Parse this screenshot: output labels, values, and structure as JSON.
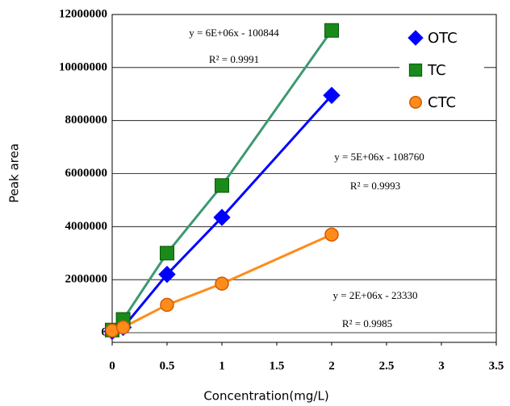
{
  "chart_data": {
    "type": "scatter",
    "x_label": "Concentration(mg/L)",
    "y_label": "Peak area",
    "xlim": [
      0,
      3.5
    ],
    "xticks": [
      0,
      0.5,
      1,
      1.5,
      2,
      2.5,
      3,
      3.5
    ],
    "ylim": [
      0,
      12000000
    ],
    "yticks": [
      0,
      2000000,
      4000000,
      6000000,
      8000000,
      10000000,
      12000000
    ],
    "grid": true,
    "legend": "top-right",
    "series": [
      {
        "name": "OTC",
        "color": "#0000ff",
        "marker": "diamond",
        "x": [
          0,
          0.1,
          0.5,
          1,
          2
        ],
        "values": [
          50000,
          200000,
          2200000,
          4350000,
          8950000
        ]
      },
      {
        "name": "TC",
        "color": "#1a8a1a",
        "line_color": "#3c9a70",
        "marker": "square",
        "x": [
          0,
          0.1,
          0.5,
          1,
          2
        ],
        "values": [
          100000,
          500000,
          3000000,
          5550000,
          11400000
        ]
      },
      {
        "name": "CTC",
        "color": "#ff8c1a",
        "marker": "circle",
        "x": [
          0,
          0.1,
          0.5,
          1,
          2
        ],
        "values": [
          80000,
          200000,
          1050000,
          1850000,
          3700000
        ]
      }
    ],
    "annotations": [
      "y = 6E+06x - 100844",
      "R² = 0.9991",
      "y = 5E+06x - 108760",
      "R² = 0.9993",
      "y = 2E+06x - 23330",
      "R² = 0.9985"
    ]
  }
}
